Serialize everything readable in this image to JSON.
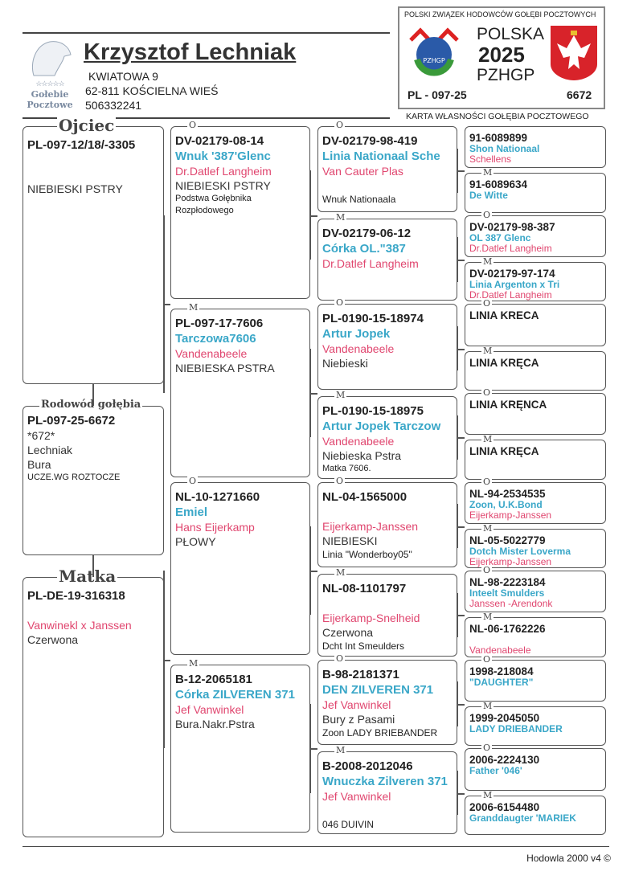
{
  "header": {
    "owner_name": "Krzysztof Lechniak",
    "address_line1": "KWIATOWA 9",
    "address_line2": "62-811 KOŚCIELNA WIEŚ",
    "phone": "506332241",
    "logo_text1": "Gołebie",
    "logo_text2": "Pocztowe"
  },
  "card": {
    "union": "POLSKI ZWIĄZEK HODOWCÓW GOŁĘBI POCZTOWYCH",
    "country": "POLSKA",
    "year": "2025",
    "org": "PZHGP",
    "ring_prefix": "PL - 097-25",
    "ring_number": "6672",
    "caption": "KARTA  WŁASNOŚCI GOŁĘBIA POCZTOWEGO",
    "badge_text": "PZHGP"
  },
  "colors": {
    "name": "#3aa7c8",
    "breeder": "#e0466f"
  },
  "gen1": [
    {
      "label": "Ojciec",
      "rows": [
        [
          "ring",
          "PL-097-12/18/-3305"
        ],
        [
          "gap",
          ""
        ],
        [
          "gap",
          ""
        ],
        [
          "color",
          "NIEBIESKI PSTRY"
        ]
      ]
    },
    {
      "label": "Rodowód gołębia",
      "rows": [
        [
          "ring",
          "PL-097-25-6672"
        ],
        [
          "color",
          "*672*"
        ],
        [
          "color",
          "Lechniak"
        ],
        [
          "color",
          "Bura"
        ],
        [
          "smallnote",
          "UCZE.WG ROZTOCZE"
        ]
      ]
    },
    {
      "label": "Matka",
      "rows": [
        [
          "ring",
          "PL-DE-19-316318"
        ],
        [
          "gap",
          ""
        ],
        [
          "breeder",
          "Vanwinekl x Janssen"
        ],
        [
          "color",
          "Czerwona"
        ]
      ]
    }
  ],
  "gen2": [
    {
      "label": "O",
      "rows": [
        [
          "ring",
          "DV-02179-08-14"
        ],
        [
          "name",
          "Wnuk '387'Glenc"
        ],
        [
          "breeder",
          "Dr.Datlef Langheim"
        ],
        [
          "color",
          "NIEBIESKI PSTRY"
        ],
        [
          "smallnote",
          "Podstwa Gołębnika"
        ],
        [
          "smallnote",
          "Rozpłodowego"
        ]
      ]
    },
    {
      "label": "M",
      "rows": [
        [
          "ring",
          "PL-097-17-7606"
        ],
        [
          "name",
          "Tarczowa7606"
        ],
        [
          "breeder",
          "Vandenabeele"
        ],
        [
          "color",
          "NIEBIESKA PSTRA"
        ]
      ]
    },
    {
      "label": "O",
      "rows": [
        [
          "ring",
          "NL-10-1271660"
        ],
        [
          "name",
          "Emiel"
        ],
        [
          "breeder",
          "Hans Eijerkamp"
        ],
        [
          "color",
          "PŁOWY"
        ]
      ]
    },
    {
      "label": "M",
      "rows": [
        [
          "ring",
          "B-12-2065181"
        ],
        [
          "name",
          "Córka ZILVEREN 371"
        ],
        [
          "breeder",
          "Jef Vanwinkel"
        ],
        [
          "color",
          "Bura.Nakr.Pstra"
        ]
      ]
    }
  ],
  "gen3": [
    {
      "label": "O",
      "rows": [
        [
          "ring",
          "DV-02179-98-419"
        ],
        [
          "name",
          "Linia Nationaal Sche"
        ],
        [
          "breeder",
          "Van Cauter Plas"
        ],
        [
          "gap",
          ""
        ],
        [
          "note",
          "Wnuk Nationaala"
        ]
      ]
    },
    {
      "label": "M",
      "rows": [
        [
          "ring",
          "DV-02179-06-12"
        ],
        [
          "name",
          "Córka OL.\"387"
        ],
        [
          "breeder",
          "Dr.Datlef Langheim"
        ]
      ]
    },
    {
      "label": "O",
      "rows": [
        [
          "ring",
          "PL-0190-15-18974"
        ],
        [
          "name",
          "Artur Jopek"
        ],
        [
          "breeder",
          "Vandenabeele"
        ],
        [
          "color",
          "Niebieski"
        ]
      ]
    },
    {
      "label": "M",
      "rows": [
        [
          "ring",
          "PL-0190-15-18975"
        ],
        [
          "name",
          "Artur Jopek  Tarczow"
        ],
        [
          "breeder",
          "Vandenabeele"
        ],
        [
          "color",
          "Niebieska Pstra"
        ],
        [
          "smallnote",
          "Matka 7606."
        ]
      ]
    },
    {
      "label": "O",
      "rows": [
        [
          "ring",
          "NL-04-1565000"
        ],
        [
          "gap",
          ""
        ],
        [
          "breeder",
          "Eijerkamp-Janssen"
        ],
        [
          "color",
          "NIEBIESKI"
        ],
        [
          "note",
          "Linia \"Wonderboy05\""
        ]
      ]
    },
    {
      "label": "M",
      "rows": [
        [
          "ring",
          "NL-08-1101797"
        ],
        [
          "gap",
          ""
        ],
        [
          "breeder",
          "Eijerkamp-Snelheid"
        ],
        [
          "color",
          "Czerwona"
        ],
        [
          "note",
          "Dcht Int Smeulders"
        ]
      ]
    },
    {
      "label": "O",
      "rows": [
        [
          "ring",
          "B-98-2181371"
        ],
        [
          "name",
          "DEN ZILVEREN 371"
        ],
        [
          "breeder",
          "Jef Vanwinkel"
        ],
        [
          "color",
          "Bury z Pasami"
        ],
        [
          "note",
          "Zoon LADY BRIEBANDER"
        ]
      ]
    },
    {
      "label": "M",
      "rows": [
        [
          "ring",
          "B-2008-2012046"
        ],
        [
          "name",
          "Wnuczka Zilveren 371"
        ],
        [
          "breeder",
          "Jef Vanwinkel"
        ],
        [
          "gap",
          ""
        ],
        [
          "note",
          "046 DUIVIN"
        ]
      ]
    }
  ],
  "gen4": [
    {
      "label": "",
      "rows": [
        [
          "ring",
          "91-6089899"
        ],
        [
          "name",
          "Shon Nationaal"
        ],
        [
          "breeder",
          "Schellens"
        ]
      ]
    },
    {
      "label": "M",
      "rows": [
        [
          "ring",
          "91-6089634"
        ],
        [
          "name",
          "De Witte"
        ]
      ]
    },
    {
      "label": "O",
      "rows": [
        [
          "ring",
          "DV-02179-98-387"
        ],
        [
          "name",
          "OL 387 Glenc"
        ],
        [
          "breeder",
          "Dr.Datlef Langheim"
        ]
      ]
    },
    {
      "label": "M",
      "rows": [
        [
          "ring",
          "DV-02179-97-174"
        ],
        [
          "name",
          "Linia Argenton x Tri"
        ],
        [
          "breeder",
          "Dr.Datlef Langheim"
        ]
      ]
    },
    {
      "label": "O",
      "rows": [
        [
          "ring",
          "LINIA KRECA"
        ]
      ]
    },
    {
      "label": "M",
      "rows": [
        [
          "ring",
          "LINIA KRĘCA"
        ]
      ]
    },
    {
      "label": "O",
      "rows": [
        [
          "ring",
          "LINIA KRĘNCA"
        ]
      ]
    },
    {
      "label": "M",
      "rows": [
        [
          "ring",
          "LINIA KRĘCA"
        ]
      ]
    },
    {
      "label": "O",
      "rows": [
        [
          "ring",
          "NL-94-2534535"
        ],
        [
          "name",
          "Zoon, U.K.Bond"
        ],
        [
          "breeder",
          "Eijerkamp-Janssen"
        ]
      ]
    },
    {
      "label": "M",
      "rows": [
        [
          "ring",
          "NL-05-5022779"
        ],
        [
          "name",
          "Dotch Mister Loverma"
        ],
        [
          "breeder",
          "Eijerkamp-Janssen"
        ]
      ]
    },
    {
      "label": "O",
      "rows": [
        [
          "ring",
          "NL-98-2223184"
        ],
        [
          "name",
          "Inteelt Smulders"
        ],
        [
          "breeder",
          "Janssen -Arendonk"
        ]
      ]
    },
    {
      "label": "M",
      "rows": [
        [
          "ring",
          "NL-06-1762226"
        ],
        [
          "gap",
          ""
        ],
        [
          "breeder",
          "Vandenabeele"
        ]
      ]
    },
    {
      "label": "O",
      "rows": [
        [
          "ring",
          "1998-218084"
        ],
        [
          "name",
          "\"DAUGHTER\""
        ]
      ]
    },
    {
      "label": "M",
      "rows": [
        [
          "ring",
          "1999-2045050"
        ],
        [
          "name",
          "LADY DRIEBANDER"
        ]
      ]
    },
    {
      "label": "O",
      "rows": [
        [
          "ring",
          "2006-2224130"
        ],
        [
          "name",
          "Father '046'"
        ]
      ]
    },
    {
      "label": "M",
      "rows": [
        [
          "ring",
          "2006-6154480"
        ],
        [
          "name",
          "Granddaugter 'MARIEK"
        ]
      ]
    }
  ],
  "footer": {
    "software": "Hodowla 2000 v4 ©"
  }
}
